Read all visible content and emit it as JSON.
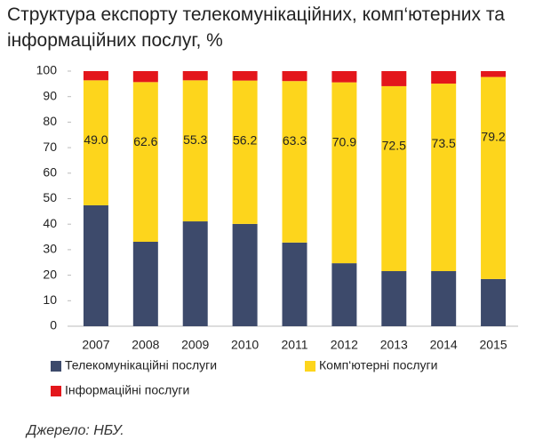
{
  "chart_data": {
    "type": "stacked-bar",
    "title": "Структура експорту телекомунікаційних, комп‘ютерних та інформаційних послуг, %",
    "source": "Джерело: НБУ.",
    "categories": [
      "2007",
      "2008",
      "2009",
      "2010",
      "2011",
      "2012",
      "2013",
      "2014",
      "2015"
    ],
    "series": [
      {
        "name": "Телекомунікаційні послуги",
        "color": "#3d4a6b",
        "values": [
          47.4,
          33.1,
          41.1,
          40.1,
          32.8,
          24.7,
          21.6,
          21.6,
          18.5
        ]
      },
      {
        "name": "Комп‘ютерні послуги",
        "color": "#fdd51c",
        "values": [
          49,
          62.6,
          55.3,
          56.2,
          63.3,
          70.9,
          72.5,
          73.5,
          79.2
        ],
        "value_labels": [
          "49.0",
          "62.6",
          "55.3",
          "56.2",
          "63.3",
          "70.9",
          "72.5",
          "73.5",
          "79.2"
        ]
      },
      {
        "name": "Інформаційні послуги",
        "color": "#e3161b",
        "values": [
          3.6,
          4.3,
          3.6,
          3.7,
          3.9,
          4.4,
          5.9,
          4.9,
          2.3
        ]
      }
    ],
    "ylim": [
      0,
      100
    ],
    "yticks": [
      0,
      10,
      20,
      30,
      40,
      50,
      60,
      70,
      80,
      90,
      100
    ]
  }
}
